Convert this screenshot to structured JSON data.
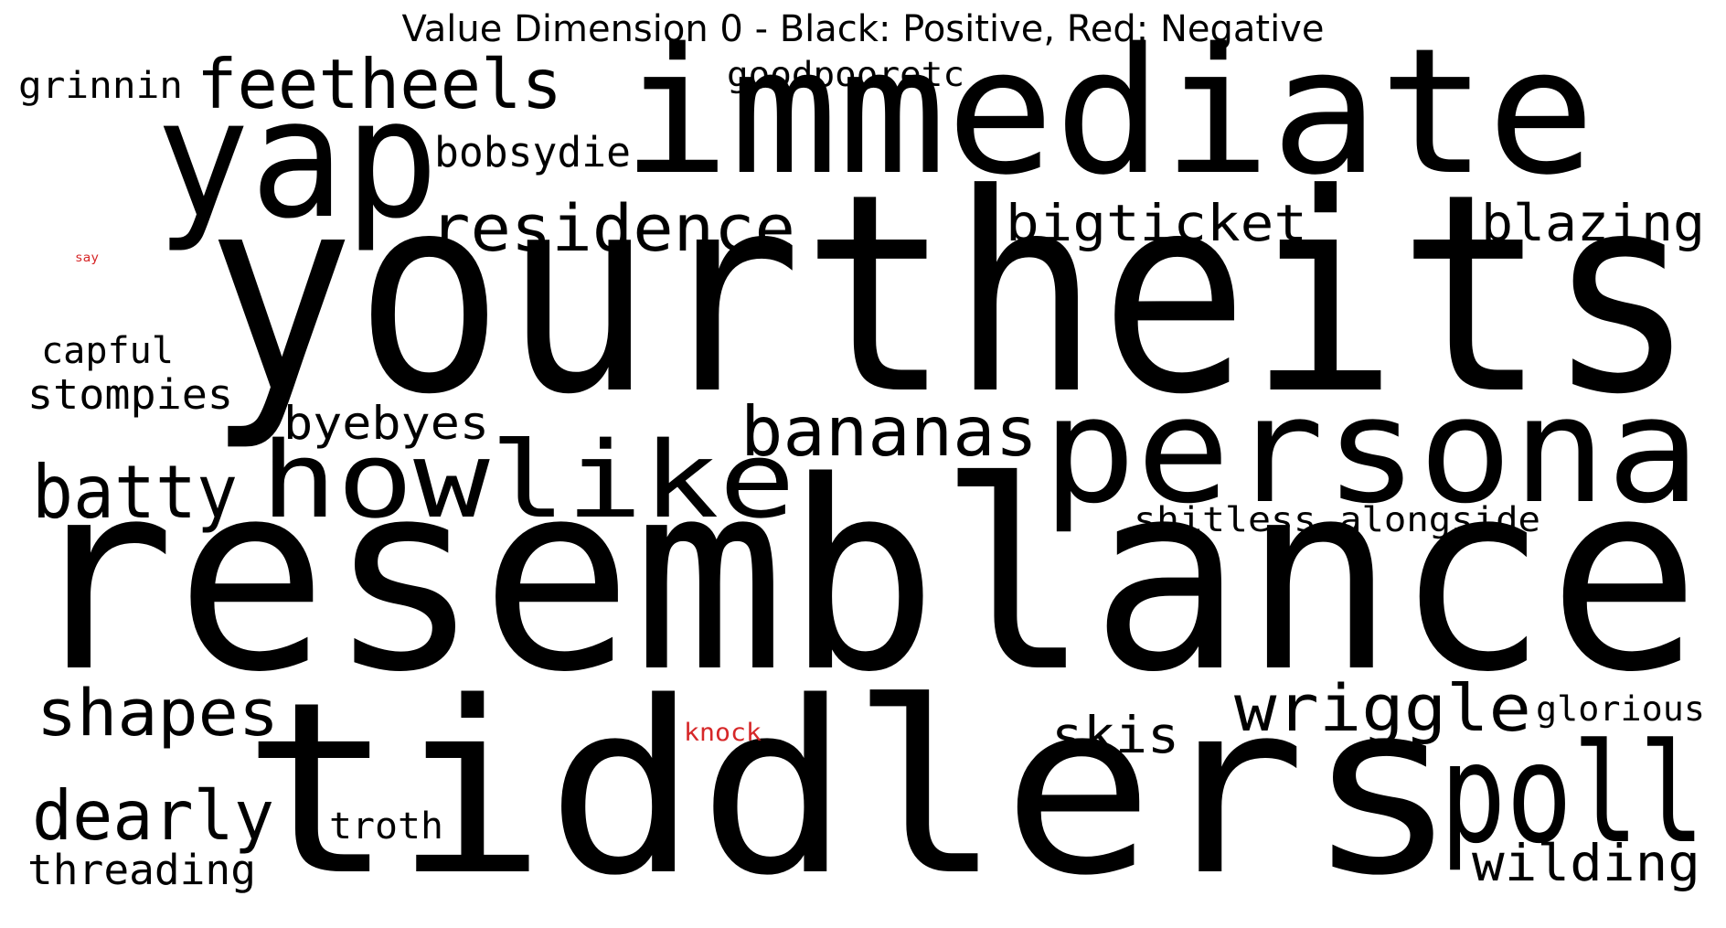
{
  "title": "Value Dimension 0 - Black: Positive, Red: Negative",
  "colors": {
    "positive": "#000000",
    "negative": "#d62728"
  },
  "words": [
    {
      "text": "yourtheits",
      "polarity": "positive"
    },
    {
      "text": "resemblance",
      "polarity": "positive"
    },
    {
      "text": "tiddlers",
      "polarity": "positive"
    },
    {
      "text": "immediate",
      "polarity": "positive"
    },
    {
      "text": "yap",
      "polarity": "positive"
    },
    {
      "text": "persona",
      "polarity": "positive"
    },
    {
      "text": "howlike",
      "polarity": "positive"
    },
    {
      "text": "poll",
      "polarity": "positive"
    },
    {
      "text": "feetheels",
      "polarity": "positive"
    },
    {
      "text": "residence",
      "polarity": "positive"
    },
    {
      "text": "bananas",
      "polarity": "positive"
    },
    {
      "text": "batty",
      "polarity": "positive"
    },
    {
      "text": "shapes",
      "polarity": "positive"
    },
    {
      "text": "dearly",
      "polarity": "positive"
    },
    {
      "text": "wriggle",
      "polarity": "positive"
    },
    {
      "text": "bigticket",
      "polarity": "positive"
    },
    {
      "text": "blazing",
      "polarity": "positive"
    },
    {
      "text": "wilding",
      "polarity": "positive"
    },
    {
      "text": "byebyes",
      "polarity": "positive"
    },
    {
      "text": "skis",
      "polarity": "positive"
    },
    {
      "text": "bobsydie",
      "polarity": "positive"
    },
    {
      "text": "threading",
      "polarity": "positive"
    },
    {
      "text": "stompies",
      "polarity": "positive"
    },
    {
      "text": "capful",
      "polarity": "positive"
    },
    {
      "text": "troth",
      "polarity": "positive"
    },
    {
      "text": "grinnin",
      "polarity": "positive"
    },
    {
      "text": "goodpooretc",
      "polarity": "positive"
    },
    {
      "text": "shitless",
      "polarity": "positive"
    },
    {
      "text": "alongside",
      "polarity": "positive"
    },
    {
      "text": "glorious",
      "polarity": "positive"
    },
    {
      "text": "knock",
      "polarity": "negative"
    },
    {
      "text": "say",
      "polarity": "negative"
    }
  ]
}
